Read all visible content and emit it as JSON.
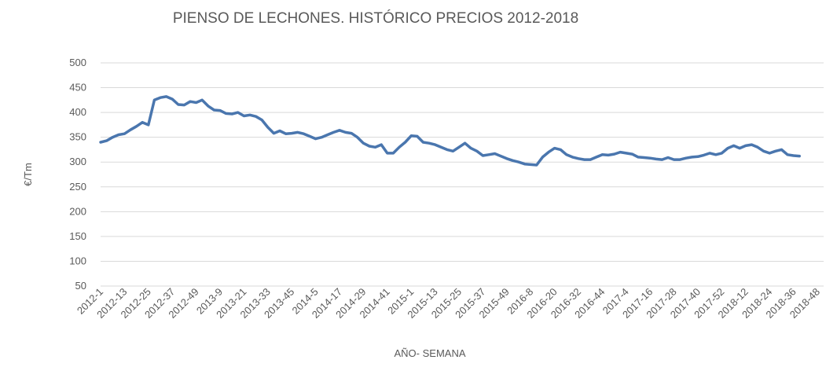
{
  "chart_data": {
    "type": "line",
    "title": "PIENSO DE LECHONES. HISTÓRICO PRECIOS 2012-2018",
    "x_label": "AÑO- SEMANA",
    "y_label": "€/Tm",
    "categories": [
      "2012-1",
      null,
      null,
      null,
      "2012-13",
      null,
      null,
      null,
      "2012-25",
      null,
      null,
      null,
      "2012-37",
      null,
      null,
      null,
      "2012-49",
      null,
      null,
      null,
      "2013-9",
      null,
      null,
      null,
      "2013-21",
      null,
      null,
      null,
      "2013-33",
      null,
      null,
      null,
      "2013-45",
      null,
      null,
      null,
      "2014-5",
      null,
      null,
      null,
      "2014-17",
      null,
      null,
      null,
      "2014-29",
      null,
      null,
      null,
      "2014-41",
      null,
      null,
      null,
      "2015-1",
      null,
      null,
      null,
      "2015-13",
      null,
      null,
      null,
      "2015-25",
      null,
      null,
      null,
      "2015-37",
      null,
      null,
      null,
      "2015-49",
      null,
      null,
      null,
      "2016-8",
      null,
      null,
      null,
      "2016-20",
      null,
      null,
      null,
      "2016-32",
      null,
      null,
      null,
      "2016-44",
      null,
      null,
      null,
      "2017-4",
      null,
      null,
      null,
      "2017-16",
      null,
      null,
      null,
      "2017-28",
      null,
      null,
      null,
      "2017-40",
      null,
      null,
      null,
      "2017-52",
      null,
      null,
      null,
      "2018-12",
      null,
      null,
      null,
      "2018-24",
      null,
      null,
      null,
      "2018-36",
      null,
      null,
      null,
      "2018-48"
    ],
    "series": [
      {
        "name": "Pienso de lechones",
        "color": "#4a76ae",
        "values": [
          340,
          343,
          350,
          355,
          357,
          365,
          372,
          380,
          375,
          425,
          430,
          432,
          427,
          416,
          415,
          422,
          420,
          425,
          413,
          405,
          404,
          398,
          397,
          400,
          393,
          395,
          392,
          385,
          370,
          358,
          363,
          357,
          358,
          360,
          357,
          352,
          347,
          350,
          355,
          360,
          364,
          360,
          358,
          350,
          338,
          332,
          330,
          335,
          318,
          318,
          330,
          340,
          353,
          352,
          340,
          338,
          335,
          330,
          325,
          322,
          330,
          338,
          328,
          322,
          313,
          315,
          317,
          312,
          307,
          303,
          300,
          296,
          295,
          294,
          310,
          320,
          328,
          325,
          315,
          310,
          307,
          305,
          305,
          310,
          315,
          314,
          316,
          320,
          318,
          316,
          310,
          309,
          308,
          306,
          305,
          309,
          305,
          305,
          308,
          310,
          311,
          314,
          318,
          315,
          318,
          328,
          333,
          328,
          333,
          335,
          330,
          322,
          318,
          322,
          325,
          315,
          313,
          312,
          null,
          null,
          null
        ]
      }
    ],
    "ylim": [
      50,
      500
    ],
    "yticks": [
      50,
      100,
      150,
      200,
      250,
      300,
      350,
      400,
      450,
      500
    ],
    "grid": true
  }
}
